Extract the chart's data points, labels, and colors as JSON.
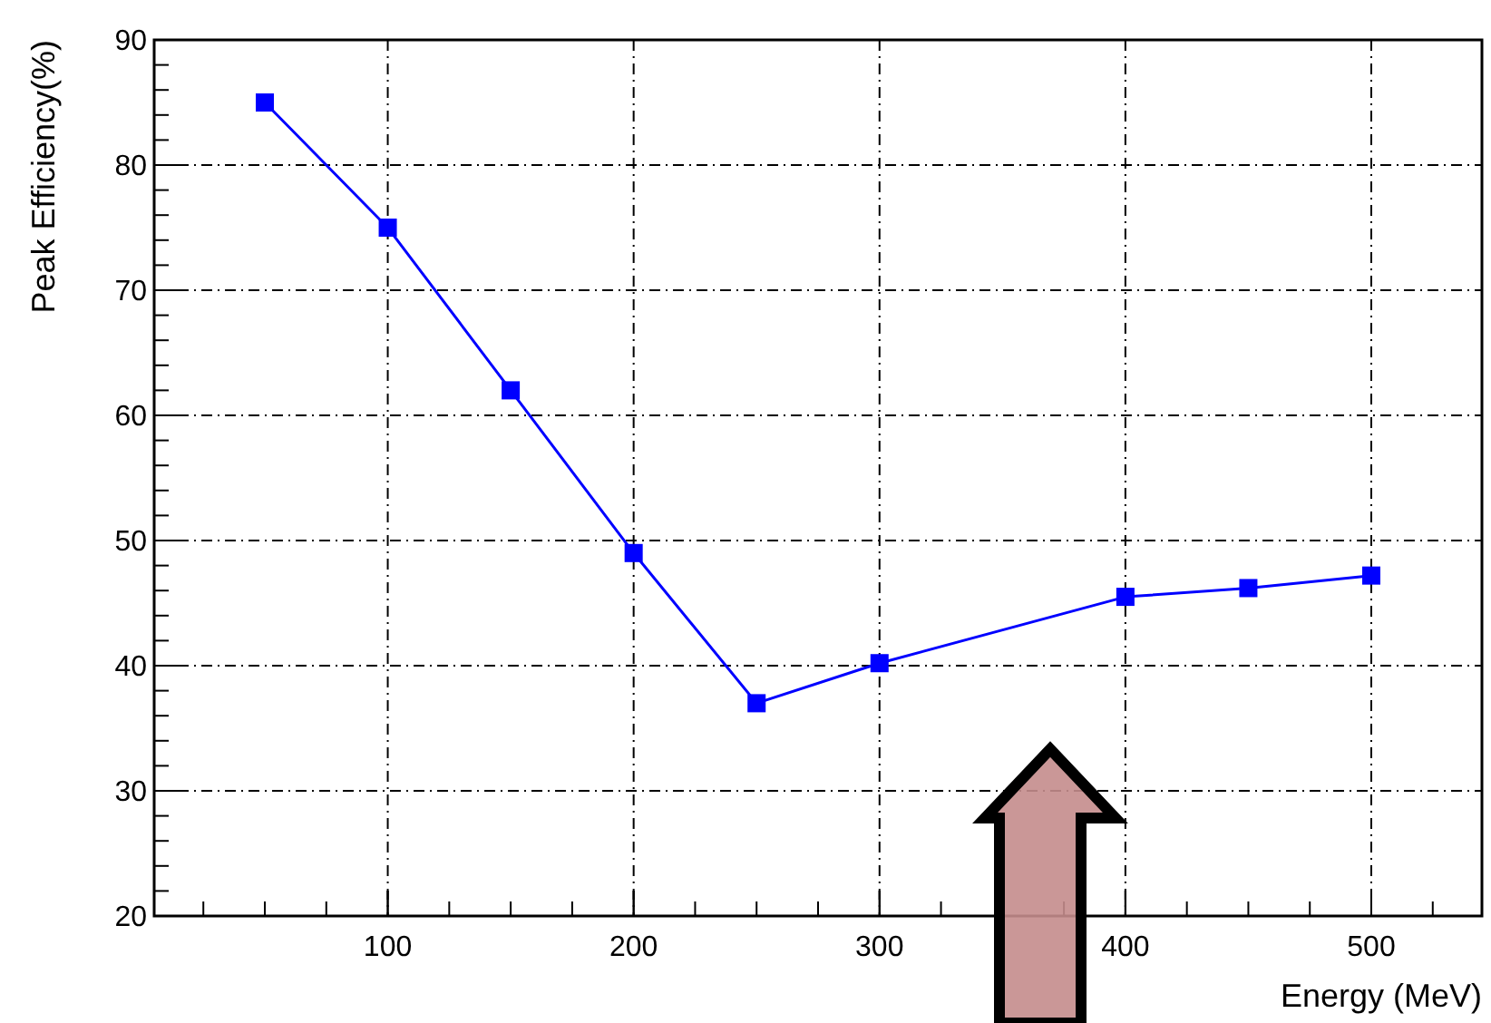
{
  "chart_data": {
    "type": "line",
    "xlabel": "Energy (MeV)",
    "ylabel": "Peak Efficiency(%)",
    "x": [
      50,
      100,
      150,
      200,
      250,
      300,
      400,
      450,
      500
    ],
    "series": [
      {
        "color": "#0000ff",
        "values": [
          85,
          75,
          62,
          49,
          37,
          40.2,
          45.5,
          46.2,
          47.2
        ]
      }
    ],
    "xlim": [
      5,
      545
    ],
    "xticks": [
      100,
      200,
      300,
      400,
      500
    ],
    "ylim": [
      20,
      90
    ],
    "yticks": [
      20,
      30,
      40,
      50,
      60,
      70,
      80,
      90
    ],
    "grid": true,
    "marker": "square",
    "line_style": "solid"
  }
}
